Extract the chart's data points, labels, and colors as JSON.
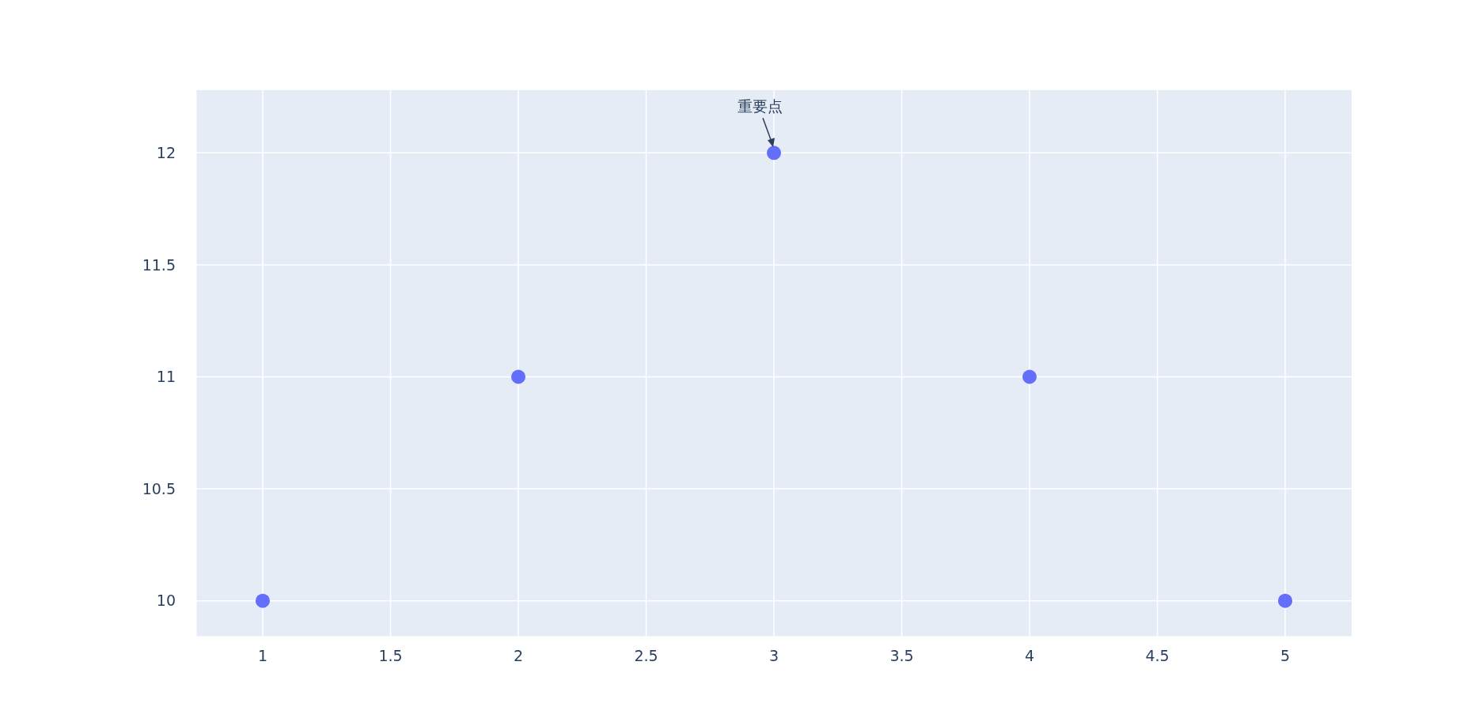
{
  "chart_data": {
    "type": "scatter",
    "x": [
      1,
      2,
      3,
      4,
      5
    ],
    "series": [
      {
        "color": "#636efa",
        "values": [
          10,
          11,
          12,
          11,
          10
        ]
      }
    ],
    "xlim": [
      0.74,
      5.26
    ],
    "xticks": [
      1,
      1.5,
      2,
      2.5,
      3,
      3.5,
      4,
      4.5,
      5
    ],
    "ylim": [
      9.84,
      12.28
    ],
    "yticks": [
      10,
      10.5,
      11,
      11.5,
      12
    ],
    "grid": true,
    "marker": "circle",
    "annotations": [
      {
        "text": "重要点",
        "x": 3,
        "y": 12
      }
    ]
  }
}
